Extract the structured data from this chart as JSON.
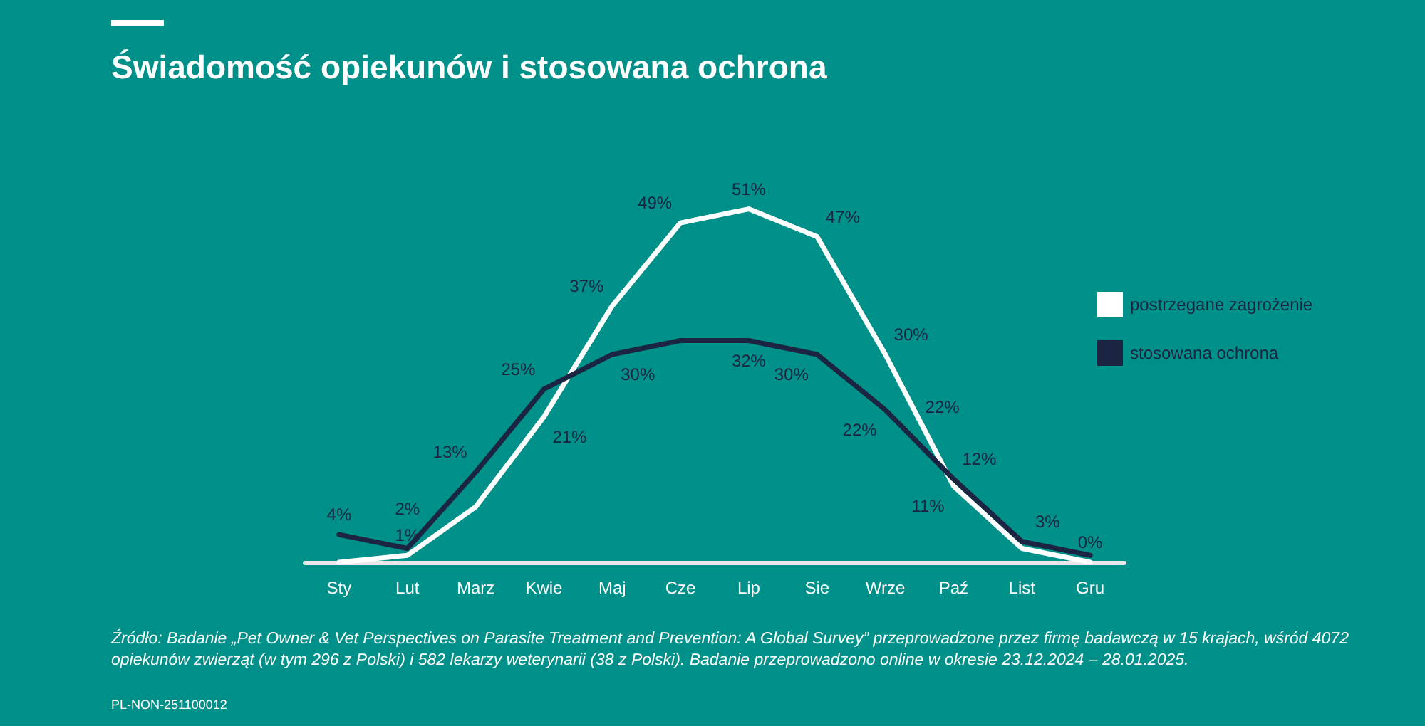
{
  "chart_data": {
    "type": "line",
    "title": "Świadomość opiekunów i stosowana ochrona",
    "categories": [
      "Sty",
      "Lut",
      "Marz",
      "Kwie",
      "Maj",
      "Cze",
      "Lip",
      "Sie",
      "Wrze",
      "Paź",
      "List",
      "Gru"
    ],
    "series": [
      {
        "name": "postrzegane zagrożenie",
        "color": "#ffffff",
        "values": [
          0,
          1,
          8,
          21,
          37,
          49,
          51,
          47,
          30,
          11,
          2,
          0
        ],
        "value_labels": [
          null,
          "1%",
          null,
          "21%",
          "37%",
          "49%",
          "51%",
          "47%",
          "30%",
          "11%",
          null,
          "0%"
        ]
      },
      {
        "name": "stosowana ochrona",
        "color": "#1b2440",
        "values": [
          4,
          2,
          13,
          25,
          30,
          32,
          32,
          30,
          22,
          12,
          3,
          1
        ],
        "value_labels": [
          "4%",
          "2%",
          "13%",
          "25%",
          "30%",
          null,
          "32%",
          "30%",
          "22%",
          "12%",
          "3%",
          null
        ]
      }
    ],
    "tick_labels": "x",
    "grid": false,
    "legend": "right",
    "marker": "none",
    "line_style": "solid",
    "annotations": [
      {
        "text": "22%",
        "x": "Wrze",
        "y": 22
      },
      "Źródło: Badanie „Pet Owner & Vet Perspectives on Parasite Treatment and Prevention: A Global Survey” przeprowadzone przez firmę badawczą w 15 krajach, wśród 4072 opiekunów zwierząt (w tym 296 z Polski) i 582 lekarzy weterynarii (38 z Polski). Badanie przeprowadzono online w okresie 23.12.2024 – 28.01.2025.",
      "PL-NON-251100012"
    ]
  }
}
